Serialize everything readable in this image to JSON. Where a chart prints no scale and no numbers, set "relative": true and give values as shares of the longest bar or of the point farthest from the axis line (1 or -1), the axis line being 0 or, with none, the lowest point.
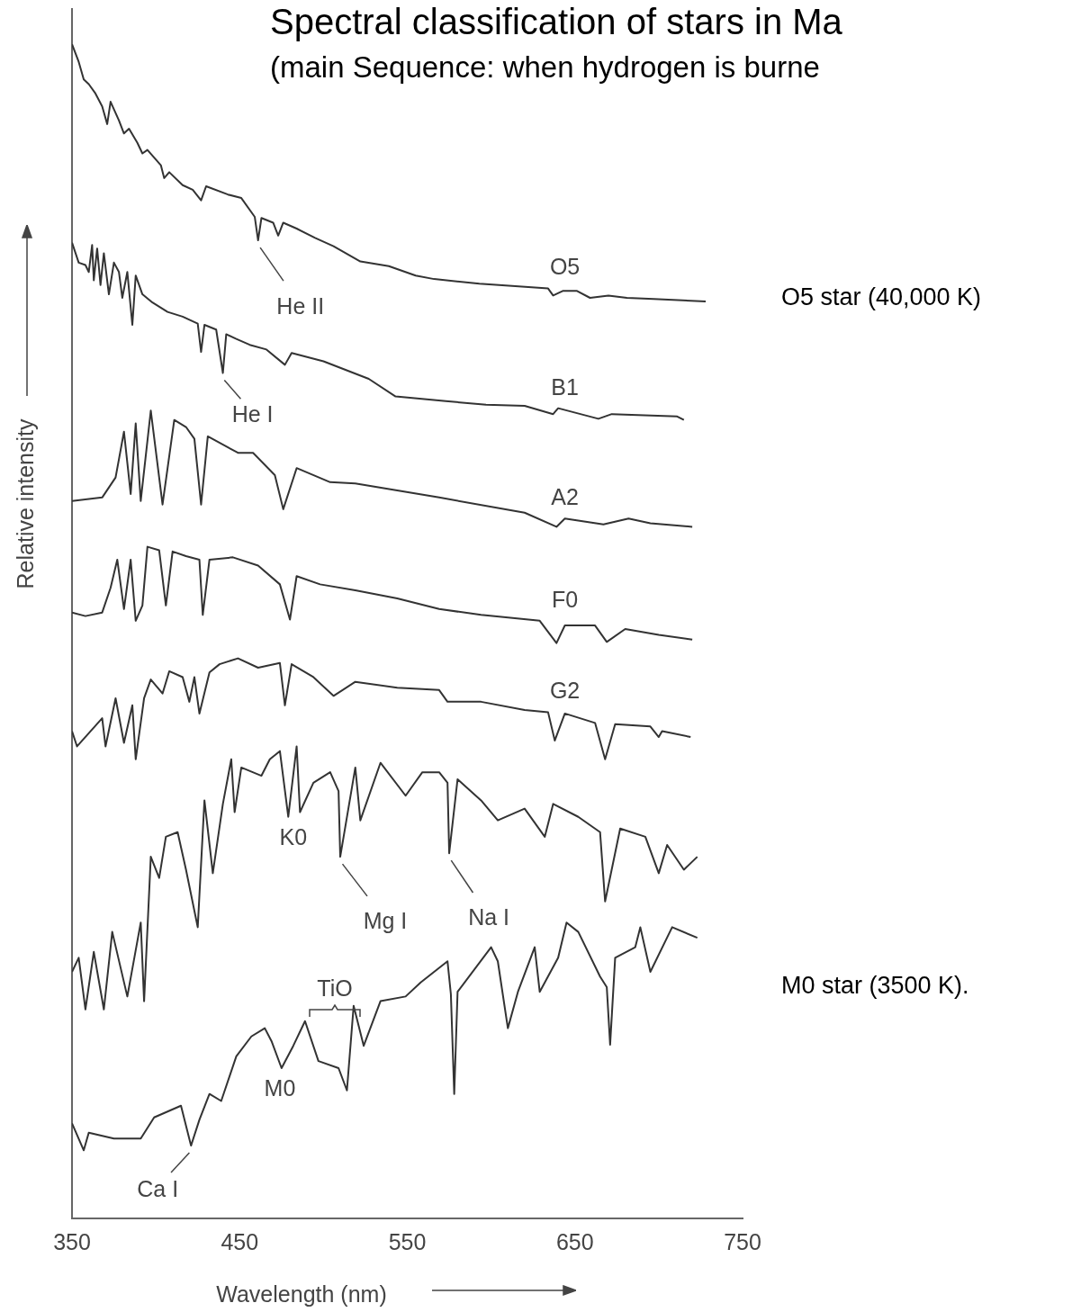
{
  "chart_data": {
    "type": "line",
    "title": "Spectral classification of stars in Ma",
    "subtitle": "(main Sequence: when hydrogen is burne",
    "xlabel": "Wavelength (nm)",
    "ylabel": "Relative intensity",
    "relative": true,
    "xlim": [
      350,
      750
    ],
    "xticks": [
      350,
      450,
      550,
      650,
      750
    ],
    "grid": false,
    "legend": false,
    "marker": "none",
    "line_style": "solid",
    "series": [
      {
        "name": "O5",
        "color": "#333333",
        "x": [
          350,
          354,
          357,
          360,
          364,
          368,
          371,
          373,
          378,
          381,
          384,
          389,
          392,
          395,
          403,
          405,
          408,
          416,
          422,
          427,
          430,
          443,
          451,
          459,
          461,
          463,
          470,
          473,
          476,
          484,
          495,
          506,
          522,
          539,
          555,
          566,
          593,
          634,
          637,
          643,
          651,
          659,
          670,
          681,
          697,
          728
        ],
        "values": [
          1.0,
          0.985,
          0.97,
          0.966,
          0.958,
          0.947,
          0.932,
          0.951,
          0.935,
          0.924,
          0.928,
          0.916,
          0.907,
          0.91,
          0.897,
          0.886,
          0.891,
          0.88,
          0.876,
          0.867,
          0.879,
          0.872,
          0.869,
          0.853,
          0.833,
          0.852,
          0.848,
          0.837,
          0.848,
          0.843,
          0.835,
          0.828,
          0.815,
          0.811,
          0.803,
          0.8,
          0.796,
          0.792,
          0.786,
          0.79,
          0.79,
          0.784,
          0.786,
          0.784,
          0.783,
          0.781
        ]
      },
      {
        "name": "B1",
        "color": "#333333",
        "x": [
          350,
          354,
          358,
          360,
          362,
          363,
          365,
          367,
          369,
          372,
          375,
          378,
          380,
          383,
          386,
          388,
          392,
          398,
          407,
          416,
          425,
          427,
          429,
          436,
          440,
          442,
          448,
          456,
          466,
          477,
          481,
          500,
          527,
          543,
          573,
          597,
          620,
          637,
          640,
          664,
          672,
          711,
          715
        ],
        "values": [
          0.831,
          0.814,
          0.812,
          0.806,
          0.829,
          0.799,
          0.826,
          0.795,
          0.822,
          0.787,
          0.814,
          0.806,
          0.784,
          0.806,
          0.761,
          0.803,
          0.787,
          0.78,
          0.772,
          0.768,
          0.762,
          0.738,
          0.761,
          0.757,
          0.72,
          0.753,
          0.749,
          0.744,
          0.74,
          0.727,
          0.737,
          0.73,
          0.715,
          0.7,
          0.696,
          0.693,
          0.692,
          0.685,
          0.69,
          0.681,
          0.685,
          0.683,
          0.68
        ]
      },
      {
        "name": "A2",
        "color": "#333333",
        "x": [
          350,
          368,
          376,
          381,
          385,
          388,
          391,
          397,
          404,
          411,
          418,
          423,
          427,
          431,
          449,
          458,
          471,
          476,
          484,
          504,
          519,
          569,
          620,
          639,
          644,
          667,
          682,
          695,
          720
        ],
        "values": [
          0.611,
          0.614,
          0.631,
          0.67,
          0.617,
          0.677,
          0.611,
          0.688,
          0.608,
          0.68,
          0.674,
          0.664,
          0.608,
          0.666,
          0.652,
          0.652,
          0.633,
          0.604,
          0.639,
          0.627,
          0.626,
          0.614,
          0.601,
          0.589,
          0.596,
          0.591,
          0.596,
          0.592,
          0.589
        ]
      },
      {
        "name": "F0",
        "color": "#333333",
        "x": [
          350,
          358,
          368,
          373,
          377,
          381,
          385,
          388,
          392,
          395,
          402,
          406,
          410,
          418,
          426,
          428,
          432,
          446,
          461,
          474,
          480,
          484,
          498,
          519,
          544,
          569,
          594,
          629,
          639,
          644,
          662,
          669,
          680,
          700,
          720
        ],
        "values": [
          0.516,
          0.513,
          0.516,
          0.537,
          0.561,
          0.519,
          0.561,
          0.509,
          0.522,
          0.572,
          0.569,
          0.522,
          0.568,
          0.564,
          0.561,
          0.514,
          0.561,
          0.563,
          0.556,
          0.54,
          0.51,
          0.547,
          0.54,
          0.535,
          0.528,
          0.519,
          0.514,
          0.509,
          0.49,
          0.505,
          0.505,
          0.491,
          0.502,
          0.497,
          0.493
        ]
      },
      {
        "name": "G2",
        "color": "#333333",
        "x": [
          350,
          353,
          368,
          370,
          376,
          381,
          386,
          388,
          393,
          397,
          404,
          408,
          416,
          420,
          423,
          426,
          432,
          438,
          449,
          461,
          474,
          477,
          481,
          494,
          506,
          519,
          544,
          569,
          574,
          594,
          620,
          634,
          638,
          644,
          662,
          668,
          674,
          695,
          700,
          702,
          719
        ],
        "values": [
          0.415,
          0.402,
          0.426,
          0.402,
          0.443,
          0.405,
          0.437,
          0.391,
          0.443,
          0.459,
          0.447,
          0.466,
          0.461,
          0.44,
          0.461,
          0.43,
          0.465,
          0.472,
          0.477,
          0.469,
          0.473,
          0.437,
          0.472,
          0.461,
          0.445,
          0.457,
          0.452,
          0.45,
          0.44,
          0.44,
          0.433,
          0.431,
          0.407,
          0.43,
          0.422,
          0.391,
          0.421,
          0.419,
          0.41,
          0.415,
          0.41
        ]
      },
      {
        "name": "K0",
        "color": "#333333",
        "x": [
          350,
          354,
          358,
          363,
          369,
          374,
          383,
          391,
          393,
          397,
          402,
          406,
          413,
          418,
          425,
          429,
          434,
          440,
          445,
          447,
          451,
          463,
          468,
          474,
          479,
          484,
          486,
          494,
          504,
          509,
          510,
          519,
          522,
          534,
          549,
          559,
          569,
          574,
          575,
          580,
          594,
          604,
          620,
          632,
          637,
          652,
          665,
          668,
          677,
          692,
          700,
          705,
          715,
          723
        ],
        "values": [
          0.21,
          0.222,
          0.178,
          0.227,
          0.178,
          0.244,
          0.189,
          0.252,
          0.185,
          0.308,
          0.29,
          0.325,
          0.329,
          0.297,
          0.248,
          0.356,
          0.294,
          0.353,
          0.391,
          0.346,
          0.384,
          0.377,
          0.391,
          0.398,
          0.342,
          0.402,
          0.346,
          0.371,
          0.38,
          0.364,
          0.308,
          0.384,
          0.339,
          0.388,
          0.36,
          0.38,
          0.38,
          0.371,
          0.311,
          0.374,
          0.356,
          0.339,
          0.349,
          0.325,
          0.353,
          0.342,
          0.329,
          0.27,
          0.332,
          0.325,
          0.294,
          0.318,
          0.297,
          0.308
        ]
      },
      {
        "name": "M0",
        "color": "#333333",
        "x": [
          350,
          357,
          360,
          375,
          391,
          399,
          415,
          421,
          426,
          432,
          439,
          448,
          457,
          465,
          469,
          475,
          482,
          489,
          497,
          509,
          514,
          518,
          524,
          534,
          549,
          558,
          574,
          576,
          578,
          580,
          600,
          604,
          610,
          616,
          626,
          629,
          640,
          645,
          652,
          665,
          669,
          671,
          674,
          686,
          689,
          695,
          708,
          723
        ],
        "values": [
          0.081,
          0.058,
          0.073,
          0.068,
          0.068,
          0.086,
          0.096,
          0.062,
          0.084,
          0.106,
          0.1,
          0.138,
          0.155,
          0.162,
          0.151,
          0.128,
          0.147,
          0.168,
          0.134,
          0.128,
          0.109,
          0.181,
          0.147,
          0.185,
          0.189,
          0.201,
          0.219,
          0.191,
          0.106,
          0.193,
          0.231,
          0.219,
          0.162,
          0.193,
          0.231,
          0.193,
          0.222,
          0.252,
          0.244,
          0.206,
          0.197,
          0.148,
          0.222,
          0.231,
          0.248,
          0.21,
          0.248,
          0.239
        ]
      }
    ],
    "annotations": [
      {
        "text": "He II",
        "x": 461,
        "y": 0.833
      },
      {
        "text": "He I",
        "x": 440,
        "y": 0.72
      },
      {
        "text": "Mg I",
        "x": 510,
        "y": 0.308
      },
      {
        "text": "Na I",
        "x": 575,
        "y": 0.311
      },
      "TiO",
      {
        "text": "Ca I",
        "x": 421,
        "y": 0.062
      },
      "O5 star (40,000 K)",
      "M0 star (3500 K)."
    ]
  }
}
